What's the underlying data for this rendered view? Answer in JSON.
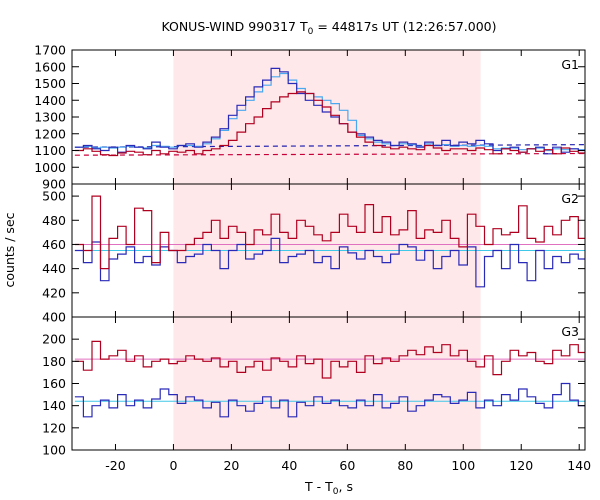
{
  "chart_data": {
    "type": "line",
    "title_main": "KONUS-WIND 990317 T",
    "title_sub": "0",
    "title_rest": " = 44817s UT (12:26:57.000)",
    "xlabel_main": "T - T",
    "xlabel_sub": "0",
    "xlabel_rest": ", s",
    "ylabel": "counts / sec",
    "xlim": [
      -35,
      142
    ],
    "xticks": [
      -20,
      0,
      20,
      40,
      60,
      80,
      100,
      120,
      140
    ],
    "highlight_interval": [
      0,
      106
    ],
    "highlight_color": "#ffe8ea",
    "grid": false,
    "legend": "none",
    "colors": {
      "series_red": "#b00020",
      "series_blue": "#2a2ab8",
      "series_lightblue": "#4aa8f0",
      "background_red": "#c8003a",
      "background_blue": "#2020b0",
      "fit_pink": "#e070c0",
      "fit_cyan": "#40c8e8"
    },
    "panels": [
      {
        "label": "G1",
        "ylim": [
          900,
          1700
        ],
        "yticks": [
          900,
          1000,
          1100,
          1200,
          1300,
          1400,
          1500,
          1600,
          1700
        ],
        "bin_start": -34,
        "bin_width": 2.944,
        "red": [
          1100,
          1110,
          1095,
          1075,
          1070,
          1085,
          1095,
          1090,
          1075,
          1100,
          1080,
          1095,
          1090,
          1100,
          1080,
          1100,
          1110,
          1130,
          1160,
          1210,
          1260,
          1300,
          1350,
          1390,
          1420,
          1440,
          1450,
          1440,
          1400,
          1360,
          1310,
          1260,
          1210,
          1180,
          1150,
          1130,
          1120,
          1110,
          1120,
          1110,
          1105,
          1130,
          1115,
          1100,
          1110,
          1110,
          1100,
          1115,
          1105,
          1080,
          1110,
          1100,
          1090,
          1110,
          1095,
          1105,
          1080,
          1115,
          1095,
          1085
        ],
        "blue": [
          1120,
          1130,
          1110,
          1100,
          1120,
          1090,
          1130,
          1120,
          1110,
          1150,
          1120,
          1110,
          1130,
          1140,
          1120,
          1150,
          1180,
          1230,
          1310,
          1370,
          1420,
          1480,
          1520,
          1590,
          1570,
          1500,
          1440,
          1400,
          1370,
          1330,
          1300,
          1260,
          1210,
          1200,
          1180,
          1160,
          1150,
          1130,
          1150,
          1140,
          1120,
          1150,
          1130,
          1160,
          1130,
          1150,
          1140,
          1160,
          1140,
          1100,
          1110,
          1120,
          1090,
          1110,
          1120,
          1080,
          1120,
          1090,
          1110,
          1100
        ],
        "lightblue": [
          1120,
          1125,
          1115,
          1120,
          1115,
          1120,
          1125,
          1120,
          1115,
          1130,
          1125,
          1120,
          1130,
          1130,
          1125,
          1140,
          1170,
          1220,
          1290,
          1340,
          1400,
          1450,
          1490,
          1540,
          1560,
          1520,
          1470,
          1440,
          1420,
          1400,
          1380,
          1340,
          1280,
          1190,
          1170,
          1150,
          1140,
          1130,
          1140,
          1135,
          1125,
          1140,
          1130,
          1135,
          1125,
          1130,
          1125,
          1130,
          1125,
          1110,
          1115,
          1115,
          1105,
          1110,
          1115,
          1100,
          1110,
          1105,
          1110,
          1105
        ],
        "dashed": [
          {
            "color": "background_blue",
            "x": [
              -34,
              142
            ],
            "y": [
              1120,
              1135
            ]
          },
          {
            "color": "background_red",
            "x": [
              -34,
              142
            ],
            "y": [
              1072,
              1082
            ]
          }
        ],
        "fits": []
      },
      {
        "label": "G2",
        "ylim": [
          400,
          510
        ],
        "yticks": [
          400,
          420,
          440,
          460,
          480,
          500
        ],
        "bin_start": -34,
        "bin_width": 2.944,
        "red": [
          460,
          455,
          500,
          440,
          465,
          475,
          460,
          490,
          488,
          445,
          470,
          455,
          455,
          460,
          465,
          470,
          480,
          465,
          475,
          470,
          460,
          472,
          468,
          485,
          470,
          465,
          480,
          475,
          468,
          463,
          470,
          485,
          475,
          470,
          493,
          470,
          483,
          468,
          472,
          488,
          465,
          472,
          470,
          480,
          465,
          458,
          485,
          475,
          460,
          473,
          468,
          470,
          492,
          465,
          462,
          475,
          468,
          480,
          483,
          465
        ],
        "blue": [
          455,
          445,
          462,
          430,
          448,
          452,
          458,
          445,
          450,
          443,
          458,
          455,
          445,
          450,
          452,
          460,
          455,
          440,
          455,
          460,
          448,
          452,
          455,
          465,
          445,
          450,
          452,
          455,
          445,
          450,
          440,
          458,
          453,
          448,
          455,
          450,
          445,
          452,
          460,
          458,
          447,
          455,
          440,
          450,
          455,
          443,
          458,
          425,
          450,
          455,
          440,
          460,
          445,
          430,
          455,
          440,
          450,
          445,
          452,
          448
        ],
        "lightblue": [],
        "dashed": [],
        "fits": [
          {
            "color": "fit_pink",
            "x": [
              -34,
              142
            ],
            "y": [
              460,
              460
            ]
          },
          {
            "color": "fit_cyan",
            "x": [
              -34,
              142
            ],
            "y": [
              455,
              455
            ]
          }
        ]
      },
      {
        "label": "G3",
        "ylim": [
          100,
          220
        ],
        "yticks": [
          100,
          120,
          140,
          160,
          180,
          200
        ],
        "bin_start": -34,
        "bin_width": 2.944,
        "red": [
          180,
          172,
          198,
          182,
          185,
          190,
          180,
          185,
          175,
          180,
          182,
          178,
          180,
          185,
          182,
          180,
          183,
          175,
          180,
          170,
          175,
          180,
          172,
          183,
          180,
          175,
          185,
          178,
          182,
          165,
          180,
          175,
          180,
          170,
          185,
          178,
          183,
          180,
          185,
          190,
          186,
          193,
          188,
          195,
          185,
          190,
          180,
          175,
          185,
          168,
          180,
          190,
          185,
          188,
          180,
          178,
          190,
          185,
          195,
          188
        ],
        "blue": [
          148,
          130,
          140,
          145,
          138,
          150,
          140,
          145,
          138,
          146,
          155,
          150,
          142,
          148,
          145,
          138,
          143,
          130,
          145,
          140,
          135,
          142,
          148,
          138,
          145,
          130,
          143,
          140,
          148,
          142,
          145,
          140,
          138,
          145,
          140,
          150,
          138,
          142,
          148,
          135,
          140,
          145,
          150,
          148,
          142,
          145,
          152,
          138,
          145,
          140,
          150,
          145,
          155,
          148,
          142,
          138,
          150,
          160,
          145,
          140
        ],
        "lightblue": [],
        "dashed": [],
        "fits": [
          {
            "color": "fit_pink",
            "x": [
              -34,
              142
            ],
            "y": [
              182,
              182
            ]
          },
          {
            "color": "fit_cyan",
            "x": [
              -34,
              142
            ],
            "y": [
              144,
              144
            ]
          }
        ]
      }
    ]
  }
}
